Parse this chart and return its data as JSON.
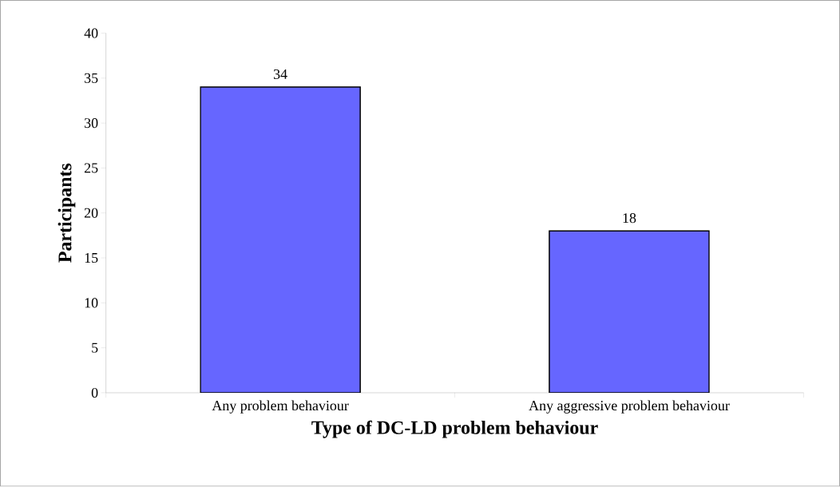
{
  "chart_data": {
    "type": "bar",
    "xlabel": "Type of DC-LD problem behaviour",
    "ylabel": "Participants",
    "categories": [
      "Any problem behaviour",
      "Any aggressive problem behaviour"
    ],
    "values": [
      34,
      18
    ],
    "color": "#6666ff",
    "data_labels": true,
    "ylim": [
      0,
      40
    ],
    "yticks": [
      0,
      5,
      10,
      15,
      20,
      25,
      30,
      35,
      40
    ]
  }
}
